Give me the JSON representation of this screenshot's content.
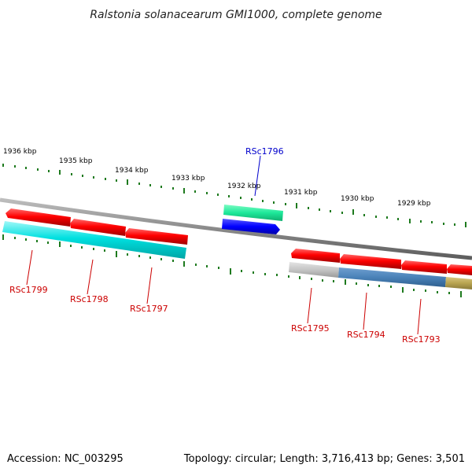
{
  "title": "Ralstonia solanacearum GMI1000, complete genome",
  "footer": {
    "accession": "Accession: NC_003295",
    "summary": "Topology: circular; Length: 3,716,413 bp; Genes: 3,501"
  },
  "colors": {
    "backbone": "#8a8a8a",
    "tick": "#1e7a1e",
    "cds": "#ff0000",
    "label_red": "#cc0000",
    "label_blue": "#0000cc"
  },
  "kbp_labels": [
    "1936 kbp",
    "1935 kbp",
    "1934 kbp",
    "1933 kbp",
    "1932 kbp",
    "1931 kbp",
    "1930 kbp",
    "1929 kbp"
  ],
  "genes": [
    {
      "name": "RSc1799",
      "color": "#cc0000"
    },
    {
      "name": "RSc1798",
      "color": "#cc0000"
    },
    {
      "name": "RSc1797",
      "color": "#cc0000"
    },
    {
      "name": "RSc1796",
      "color": "#0000cc"
    },
    {
      "name": "RSc1795",
      "color": "#cc0000"
    },
    {
      "name": "RSc1794",
      "color": "#cc0000"
    },
    {
      "name": "RSc1793",
      "color": "#cc0000"
    }
  ]
}
